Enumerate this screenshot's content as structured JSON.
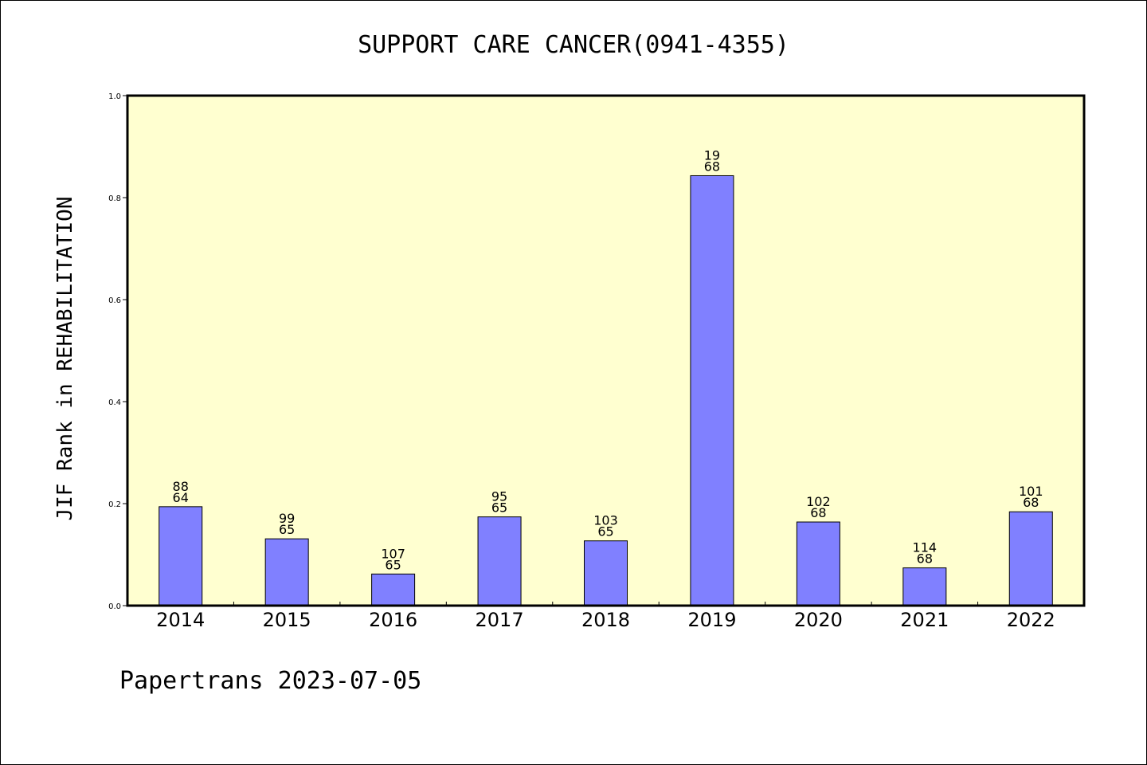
{
  "chart_data": {
    "type": "bar",
    "title": "SUPPORT CARE CANCER(0941-4355)",
    "xlabel": "",
    "ylabel": "JIF Rank in REHABILITATION",
    "categories": [
      "2014",
      "2015",
      "2016",
      "2017",
      "2018",
      "2019",
      "2020",
      "2021",
      "2022"
    ],
    "values": [
      0.194,
      0.131,
      0.062,
      0.174,
      0.127,
      0.843,
      0.164,
      0.074,
      0.184
    ],
    "rank_labels": [
      "88",
      "99",
      "107",
      "95",
      "103",
      "19",
      "102",
      "114",
      "101"
    ],
    "total_labels": [
      "64",
      "65",
      "65",
      "65",
      "65",
      "68",
      "68",
      "68",
      "68"
    ],
    "ylim": [
      0,
      1.0
    ],
    "yticks": [
      "0.0",
      "0.2",
      "0.4",
      "0.6",
      "0.8",
      "1.0"
    ],
    "grid": false,
    "colors": {
      "bar_fill": "#8080ff",
      "bar_stroke": "#000000",
      "plot_background": "#ffffd0",
      "axis": "#000000"
    }
  },
  "footer": {
    "text": "Papertrans 2023-07-05"
  }
}
